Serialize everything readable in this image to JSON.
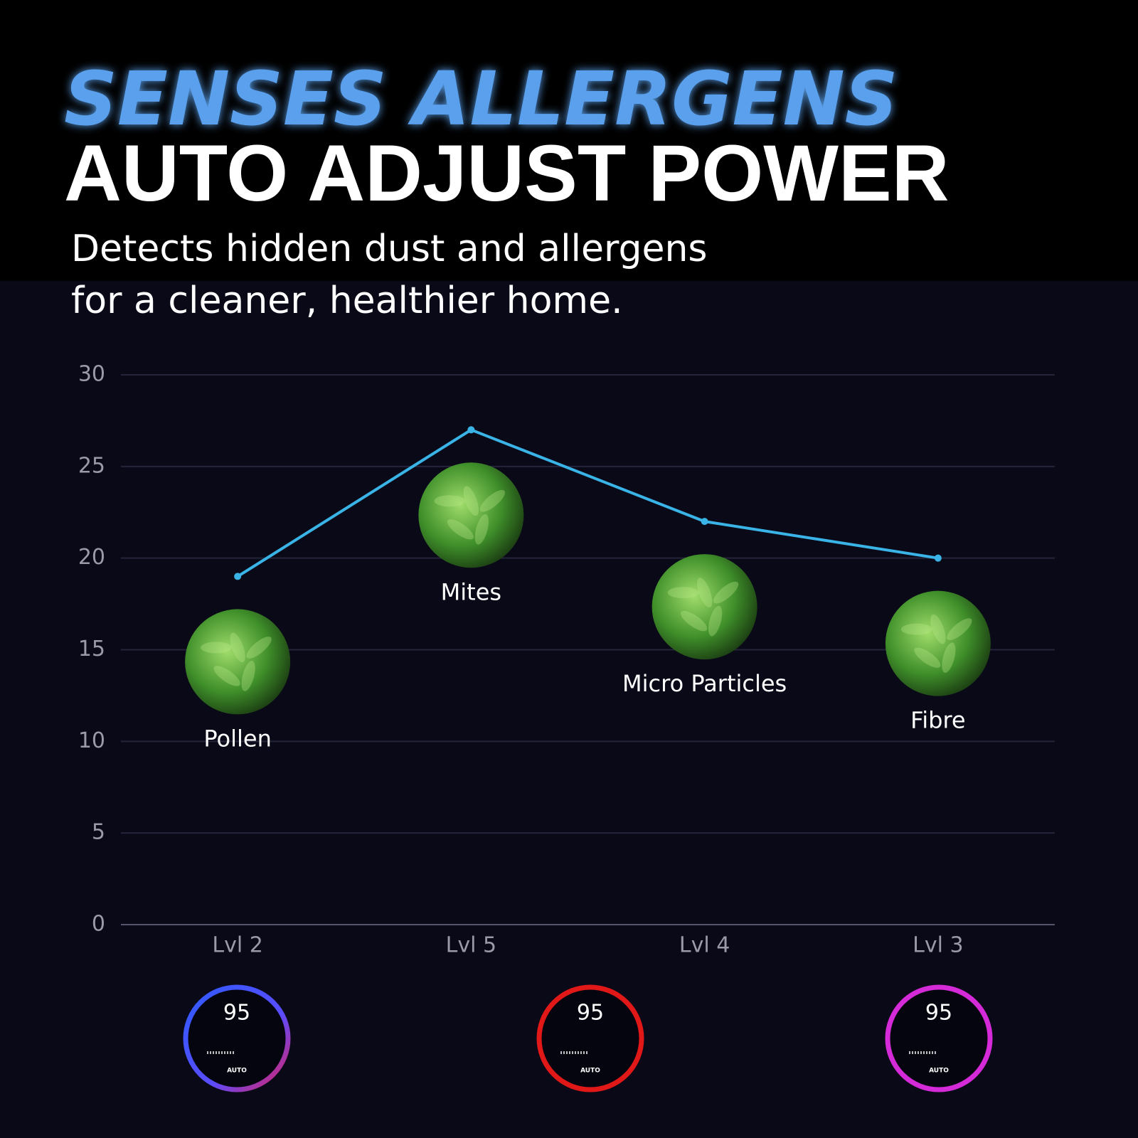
{
  "chart_data": {
    "type": "line",
    "title": "SENSES ALLERGENS",
    "subtitle": "AUTO ADJUST POWER",
    "description": [
      "Detects hidden dust and allergens",
      "for a cleaner, healthier home."
    ],
    "categories": [
      "Lvl 2",
      "Lvl 5",
      "Lvl 4",
      "Lvl 3"
    ],
    "values": [
      19,
      27,
      22,
      20
    ],
    "annotations": [
      "Pollen",
      "Mites",
      "Micro Particles",
      "Fibre"
    ],
    "color": "#3ab4e6",
    "ylim": [
      0,
      30
    ],
    "yticks": [
      0,
      5,
      10,
      15,
      20,
      25,
      30
    ],
    "grid": true
  },
  "devices": [
    {
      "reading": "95",
      "mode": "AUTO"
    },
    {
      "reading": "95",
      "mode": "AUTO"
    },
    {
      "reading": "95",
      "mode": "AUTO"
    }
  ]
}
